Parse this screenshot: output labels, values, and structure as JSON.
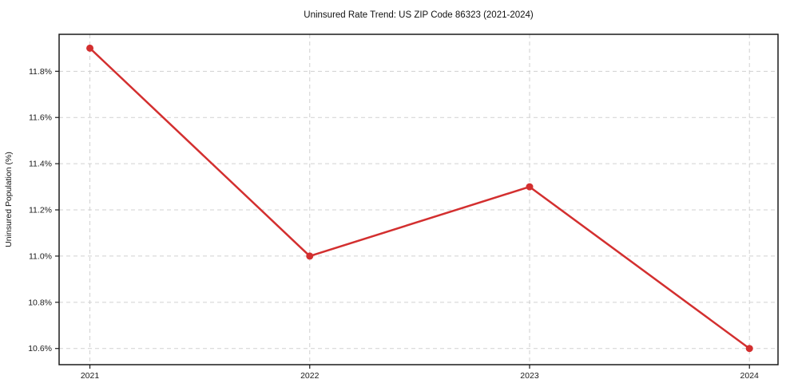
{
  "chart_data": {
    "type": "line",
    "title": "Uninsured Rate Trend: US ZIP Code 86323 (2021-2024)",
    "xlabel": "",
    "ylabel": "Uninsured Population (%)",
    "categories": [
      "2021",
      "2022",
      "2023",
      "2024"
    ],
    "x": [
      0,
      1,
      2,
      3
    ],
    "series": [
      {
        "name": "Uninsured Rate",
        "values": [
          11.9,
          11.0,
          11.3,
          10.6
        ]
      }
    ],
    "yticks": [
      10.6,
      10.8,
      11.0,
      11.2,
      11.4,
      11.6,
      11.8
    ],
    "ytick_labels": [
      "10.6%",
      "10.8%",
      "11.0%",
      "11.2%",
      "11.4%",
      "11.6%",
      "11.8%"
    ],
    "ylim": [
      10.53,
      11.96
    ],
    "xlim": [
      -0.14,
      3.13
    ],
    "grid": true,
    "legend_position": "none",
    "colors": {
      "line": "#d32f2f",
      "marker": "#d32f2f",
      "grid": "#cccccc",
      "spine": "#1a1a1a",
      "background": "#ffffff",
      "text": "#1a1a1a"
    },
    "style": {
      "line_width": 2.5,
      "marker_radius": 4.5,
      "marker_shape": "circle",
      "grid_dash": "5 4"
    }
  }
}
